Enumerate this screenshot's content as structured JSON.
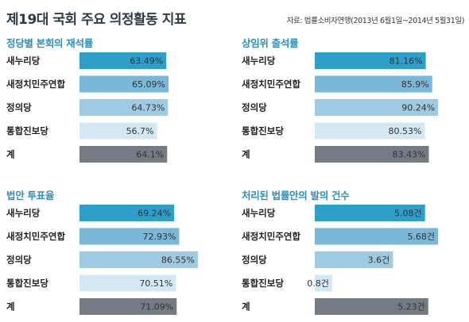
{
  "header": {
    "title": "제19대 국회 주요 의정활동 지표",
    "source": "자료: 법률소비자연맹(2013년 6월1일~2014년 5월31일)"
  },
  "colors": {
    "title_accent": "#2b8fbe",
    "series": [
      "#2f9fca",
      "#79b8d8",
      "#9ccbe3",
      "#d4e8f3",
      "#757b84"
    ]
  },
  "chart_data": [
    {
      "type": "bar",
      "title": "정당별 본회의 재석률",
      "categories": [
        "새누리당",
        "새정치민주연합",
        "정의당",
        "통합진보당",
        "계"
      ],
      "values": [
        63.49,
        65.09,
        64.73,
        56.7,
        64.1
      ],
      "labels": [
        "63.49%",
        "65.09%",
        "64.73%",
        "56.7%",
        "64.1%"
      ],
      "xlim": [
        0,
        100
      ]
    },
    {
      "type": "bar",
      "title": "상임위 출석률",
      "categories": [
        "새누리당",
        "새정치민주연합",
        "정의당",
        "통합진보당",
        "계"
      ],
      "values": [
        81.16,
        85.9,
        90.24,
        80.53,
        83.43
      ],
      "labels": [
        "81.16%",
        "85.9%",
        "90.24%",
        "80.53%",
        "83.43%"
      ],
      "xlim": [
        0,
        100
      ]
    },
    {
      "type": "bar",
      "title": "법안 투표율",
      "categories": [
        "새누리당",
        "새정치민주연합",
        "정의당",
        "통합진보당",
        "계"
      ],
      "values": [
        69.24,
        72.93,
        86.55,
        70.51,
        71.09
      ],
      "labels": [
        "69.24%",
        "72.93%",
        "86.55%",
        "70.51%",
        "71.09%"
      ],
      "xlim": [
        0,
        100
      ]
    },
    {
      "type": "bar",
      "title": "처리된 법률안의 발의 건수",
      "categories": [
        "새누리당",
        "새정치민주연합",
        "정의당",
        "통합진보당",
        "계"
      ],
      "values": [
        5.08,
        5.68,
        3.6,
        0.8,
        5.23
      ],
      "labels": [
        "5.08건",
        "5.68건",
        "3.6건",
        "0.8건",
        "5.23건"
      ],
      "xlim": [
        0,
        6.3
      ]
    }
  ]
}
